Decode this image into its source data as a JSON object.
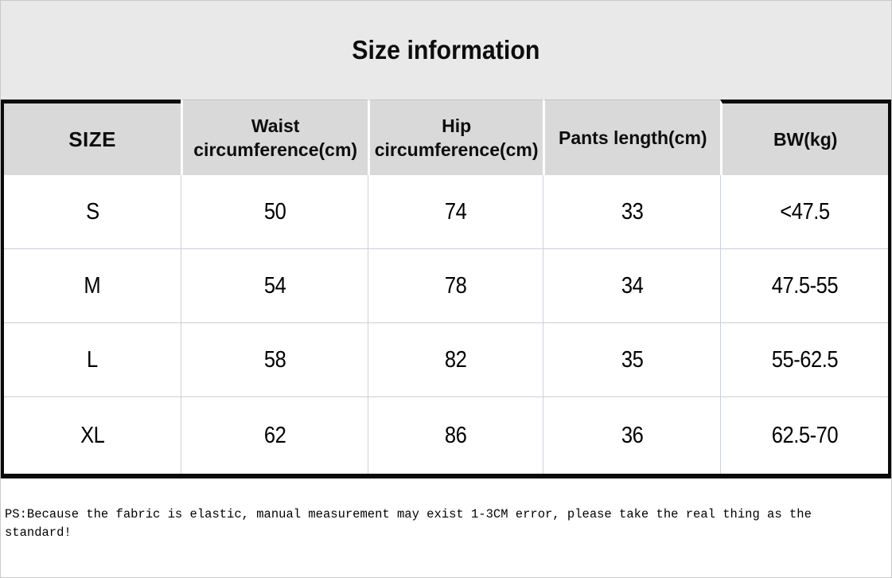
{
  "title": "Size information",
  "table": {
    "headers": [
      "SIZE",
      "Waist circumference(cm)",
      "Hip circumference(cm)",
      "Pants length(cm)",
      "BW(kg)"
    ],
    "rows": [
      [
        "S",
        "50",
        "74",
        "33",
        "<47.5"
      ],
      [
        "M",
        "54",
        "78",
        "34",
        "47.5-55"
      ],
      [
        "L",
        "58",
        "82",
        "35",
        "55-62.5"
      ],
      [
        "XL",
        "62",
        "86",
        "36",
        "62.5-70"
      ]
    ]
  },
  "note": {
    "line1": "PS:Because the fabric is elastic, manual measurement may exist 1-3CM error, please take the real thing as the",
    "line2": "standard!"
  },
  "colors": {
    "title-band-bg": "#e9e9e9",
    "header-bg": "#d9d9d9",
    "table-border": "#0a0a0a",
    "gridline": "#ccd2dc",
    "gridline-h": "#c9cfd9",
    "text": "#0d0d0d",
    "canvas-border": "#c9c9c9"
  }
}
